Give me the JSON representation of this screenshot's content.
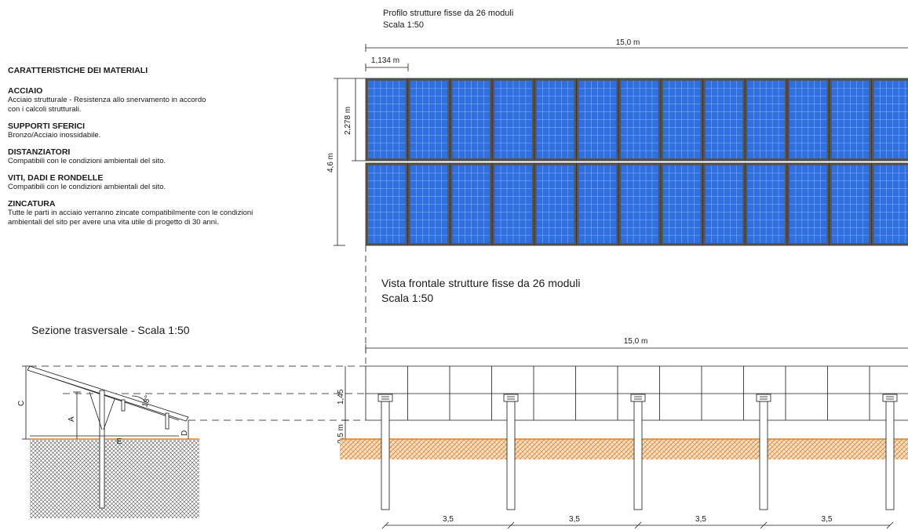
{
  "profile": {
    "title": "Profilo strutture fisse da 26 moduli",
    "scale": "Scala 1:50",
    "total_width": "15,0 m",
    "module_width": "1,134 m",
    "module_height": "2,278 m",
    "total_height": "4,6 m"
  },
  "materials": {
    "heading": "CARATTERISTICHE DEI MATERIALI",
    "items": [
      {
        "title": "ACCIAIO",
        "lines": [
          "Acciaio strutturale - Resistenza allo snervamento in accordo",
          "con i calcoli strutturali."
        ]
      },
      {
        "title": "SUPPORTI SFERICI",
        "lines": [
          "Bronzo/Acciaio inossidabile."
        ]
      },
      {
        "title": "DISTANZIATORI",
        "lines": [
          "Compatibili con le condizioni ambientali del sito."
        ]
      },
      {
        "title": "VITI, DADI E RONDELLE",
        "lines": [
          "Compatibili con le condizioni ambientali del sito."
        ]
      },
      {
        "title": "ZINCATURA",
        "lines": [
          "Tutte le parti in acciaio verranno zincate compatibilmente con le condizioni",
          "ambientali del sito per avere una vita utile di progetto di 30 anni."
        ]
      }
    ]
  },
  "front": {
    "title": "Vista frontale strutture fisse da 26 moduli",
    "scale": "Scala 1:50",
    "total_width": "15,0 m",
    "height_label": "1,45",
    "ground_clearance": "0,5 m",
    "spacings": [
      "3,5",
      "3,5",
      "3,5",
      "3,5"
    ]
  },
  "section": {
    "title": "Sezione trasversale - Scala 1:50",
    "labels": {
      "C": "C",
      "A": "A",
      "E": "E",
      "D": "D",
      "angle": "18°"
    }
  },
  "colors": {
    "panel": "#2f6fe0",
    "panel_grid": "#a9c8ff",
    "soil": "#e2a46a",
    "ground_line": "#d9822b",
    "line": "#1a1a1a"
  }
}
